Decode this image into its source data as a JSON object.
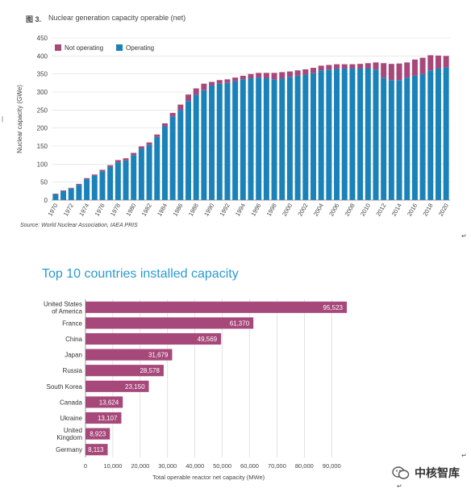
{
  "figure_label": "图 3.",
  "watermark_text": "中核智库",
  "return_symbol": "↵",
  "side_mark": "|",
  "chart_data": [
    {
      "type": "bar",
      "stacked": true,
      "title": "Nuclear generation capacity operable (net)",
      "ylabel": "Nuclear capacity (GWe)",
      "xlabel": "",
      "source": "Source: World Nuclear Association, IAEA PRIS",
      "ylim": [
        0,
        450
      ],
      "yticks": [
        0,
        50,
        100,
        150,
        200,
        250,
        300,
        350,
        400,
        450
      ],
      "grid": "horizontal",
      "legend": "top-left",
      "categories": [
        1970,
        1971,
        1972,
        1973,
        1974,
        1975,
        1976,
        1977,
        1978,
        1979,
        1980,
        1981,
        1982,
        1983,
        1984,
        1985,
        1986,
        1987,
        1988,
        1989,
        1990,
        1991,
        1992,
        1993,
        1994,
        1995,
        1996,
        1997,
        1998,
        1999,
        2000,
        2001,
        2002,
        2003,
        2004,
        2005,
        2006,
        2007,
        2008,
        2009,
        2010,
        2011,
        2012,
        2013,
        2014,
        2015,
        2016,
        2017,
        2018,
        2019,
        2020
      ],
      "tick_labels": [
        "1970",
        "1972",
        "1974",
        "1976",
        "1978",
        "1980",
        "1982",
        "1984",
        "1986",
        "1988",
        "1990",
        "1992",
        "1994",
        "1996",
        "1998",
        "2000",
        "2002",
        "2004",
        "2006",
        "2008",
        "2010",
        "2012",
        "2014",
        "2016",
        "2018",
        "2020"
      ],
      "series": [
        {
          "name": "Operating",
          "color": "#1a82b8",
          "values": [
            16,
            25,
            32,
            42,
            58,
            68,
            80,
            92,
            105,
            110,
            125,
            143,
            153,
            175,
            205,
            232,
            250,
            275,
            292,
            305,
            318,
            323,
            325,
            330,
            335,
            338,
            340,
            338,
            335,
            337,
            342,
            345,
            348,
            352,
            360,
            362,
            364,
            365,
            365,
            365,
            366,
            362,
            340,
            333,
            333,
            340,
            345,
            350,
            360,
            365,
            368
          ]
        },
        {
          "name": "Not operating",
          "color": "#a6487a",
          "values": [
            2,
            2,
            2,
            3,
            3,
            3,
            4,
            5,
            6,
            6,
            6,
            6,
            7,
            7,
            8,
            10,
            15,
            18,
            18,
            18,
            10,
            10,
            10,
            10,
            10,
            12,
            13,
            15,
            18,
            18,
            15,
            15,
            15,
            15,
            13,
            13,
            13,
            12,
            12,
            13,
            14,
            20,
            40,
            45,
            46,
            42,
            45,
            45,
            42,
            36,
            32
          ]
        }
      ]
    },
    {
      "type": "bar",
      "orientation": "horizontal",
      "title": "Top 10 countries installed capacity",
      "xlabel": "Total operable reactor net capacity (MWe)",
      "ylabel": "",
      "xlim": [
        0,
        95523
      ],
      "xticks": [
        "0",
        "10,000",
        "20,000",
        "30,000",
        "40,000",
        "50,000",
        "60,000",
        "70,000",
        "80,000",
        "90,000"
      ],
      "color": "#a6487a",
      "categories": [
        [
          "United States",
          "of America"
        ],
        [
          "France"
        ],
        [
          "China"
        ],
        [
          "Japan"
        ],
        [
          "Russia"
        ],
        [
          "South Korea"
        ],
        [
          "Canada"
        ],
        [
          "Ukraine"
        ],
        [
          "United",
          "Kingdom"
        ],
        [
          "Germany"
        ]
      ],
      "values": [
        95523,
        61370,
        49569,
        31679,
        28578,
        23150,
        13624,
        13107,
        8923,
        8113
      ],
      "value_labels": [
        "95,523",
        "61,370",
        "49,569",
        "31,679",
        "28,578",
        "23,150",
        "13,624",
        "13,107",
        "8,923",
        "8,113"
      ]
    }
  ]
}
